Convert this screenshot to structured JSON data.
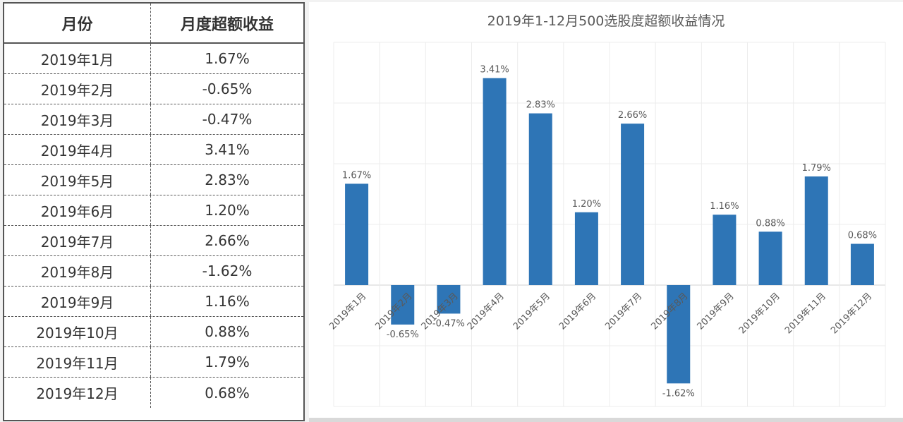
{
  "table": {
    "headers": [
      "月份",
      "月度超额收益"
    ],
    "rows": [
      [
        "2019年1月",
        "1.67%"
      ],
      [
        "2019年2月",
        "-0.65%"
      ],
      [
        "2019年3月",
        "-0.47%"
      ],
      [
        "2019年4月",
        "3.41%"
      ],
      [
        "2019年5月",
        "2.83%"
      ],
      [
        "2019年6月",
        "1.20%"
      ],
      [
        "2019年7月",
        "2.66%"
      ],
      [
        "2019年8月",
        "-1.62%"
      ],
      [
        "2019年9月",
        "1.16%"
      ],
      [
        "2019年10月",
        "0.88%"
      ],
      [
        "2019年11月",
        "1.79%"
      ],
      [
        "2019年12月",
        "0.68%"
      ]
    ]
  },
  "chart_data": {
    "type": "bar",
    "title": "2019年1-12月500选股度超额收益情况",
    "categories": [
      "2019年1月",
      "2019年2月",
      "2019年3月",
      "2019年4月",
      "2019年5月",
      "2019年6月",
      "2019年7月",
      "2019年8月",
      "2019年9月",
      "2019年10月",
      "2019年11月",
      "2019年12月"
    ],
    "values": [
      1.67,
      -0.65,
      -0.47,
      3.41,
      2.83,
      1.2,
      2.66,
      -1.62,
      1.16,
      0.88,
      1.79,
      0.68
    ],
    "data_labels": [
      "1.67%",
      "-0.65%",
      "-0.47%",
      "3.41%",
      "2.83%",
      "1.20%",
      "2.66%",
      "-1.62%",
      "1.16%",
      "0.88%",
      "1.79%",
      "0.68%"
    ],
    "xlabel": "",
    "ylabel": "",
    "ylim": [
      -2,
      4
    ],
    "grid": true,
    "legend": "none",
    "bar_color": "#2e75b6"
  }
}
